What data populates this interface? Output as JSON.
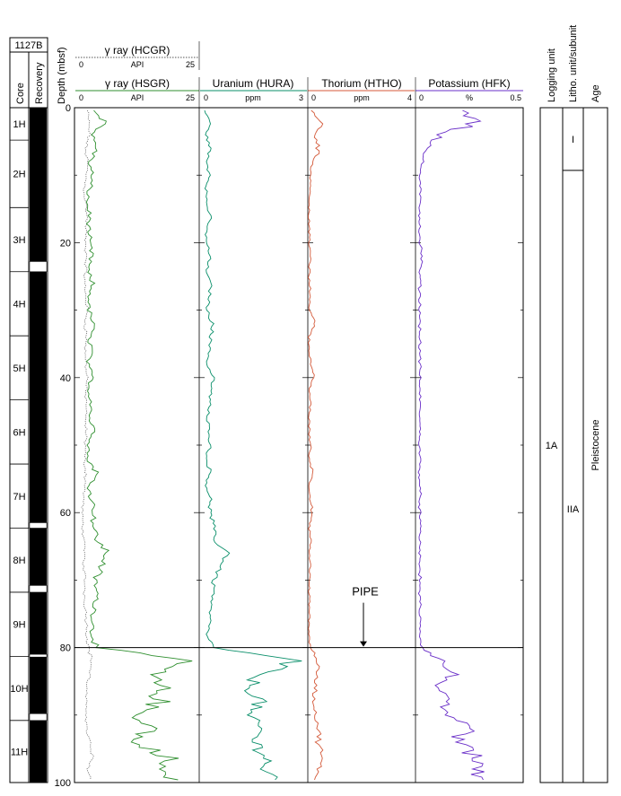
{
  "site": "1127B",
  "headers": {
    "core": "Core",
    "recovery": "Recovery",
    "depth": "Depth (mbsf)",
    "logging_unit": "Logging unit",
    "litho_unit": "Litho. unit/subunit",
    "age": "Age"
  },
  "tracks": {
    "hcgr": {
      "title": "γ ray (HCGR)",
      "unit": "API",
      "min": "0",
      "max": "25"
    },
    "hsgr": {
      "title": "γ ray (HSGR)",
      "unit": "API",
      "min": "0",
      "max": "25"
    },
    "hura": {
      "title": "Uranium (HURA)",
      "unit": "ppm",
      "min": "0",
      "max": "3"
    },
    "htho": {
      "title": "Thorium (HTHO)",
      "unit": "ppm",
      "min": "0",
      "max": "4"
    },
    "hfk": {
      "title": "Potassium (HFK)",
      "unit": "%",
      "min": "0",
      "max": "0.5"
    }
  },
  "annotation": {
    "pipe": "PIPE",
    "pipe_depth": 80
  },
  "cores": [
    {
      "label": "1H",
      "top": 0,
      "bottom": 4.8
    },
    {
      "label": "2H",
      "top": 4.8,
      "bottom": 14.8
    },
    {
      "label": "3H",
      "top": 14.8,
      "bottom": 24.3
    },
    {
      "label": "4H",
      "top": 24.3,
      "bottom": 33.8
    },
    {
      "label": "5H",
      "top": 33.8,
      "bottom": 43.3
    },
    {
      "label": "6H",
      "top": 43.3,
      "bottom": 52.8
    },
    {
      "label": "7H",
      "top": 52.8,
      "bottom": 62.3
    },
    {
      "label": "8H",
      "top": 62.3,
      "bottom": 71.8
    },
    {
      "label": "9H",
      "top": 71.8,
      "bottom": 81.3
    },
    {
      "label": "10H",
      "top": 81.3,
      "bottom": 90.8
    },
    {
      "label": "11H",
      "top": 90.8,
      "bottom": 100
    }
  ],
  "recovery_gaps": [
    [
      22.8,
      24.3
    ],
    [
      61.5,
      62.3
    ],
    [
      70.8,
      71.8
    ],
    [
      81.0,
      81.3
    ],
    [
      89.8,
      90.8
    ]
  ],
  "logging_units": [
    {
      "label": "1A",
      "top": 0,
      "bottom": 100
    }
  ],
  "litho_units": [
    {
      "label": "I",
      "top": 0,
      "bottom": 9.3
    },
    {
      "label": "IIA",
      "top": 9.3,
      "bottom": 100
    }
  ],
  "ages": [
    {
      "label": "Pleistocene",
      "top": 0,
      "bottom": 100
    }
  ],
  "chart_data": {
    "type": "line",
    "y_axis": {
      "label": "Depth (mbsf)",
      "range": [
        0,
        100
      ],
      "inverted": true,
      "ticks": [
        0,
        20,
        40,
        60,
        80,
        100
      ]
    },
    "series": [
      {
        "name": "γ ray (HCGR)",
        "unit": "API",
        "range": [
          0,
          25
        ],
        "color": "#555555",
        "dashed": true,
        "style": "dotted"
      },
      {
        "name": "γ ray (HSGR)",
        "unit": "API",
        "range": [
          0,
          25
        ],
        "color": "#2f8f2f"
      },
      {
        "name": "Uranium (HURA)",
        "unit": "ppm",
        "range": [
          0,
          3
        ],
        "color": "#0a8f6a"
      },
      {
        "name": "Thorium (HTHO)",
        "unit": "ppm",
        "range": [
          0,
          4
        ],
        "color": "#d45a3a"
      },
      {
        "name": "Potassium (HFK)",
        "unit": "%",
        "range": [
          0,
          0.5
        ],
        "color": "#6a2fc8"
      }
    ],
    "profiles_approx": {
      "depth": [
        0,
        2,
        4,
        6,
        8,
        10,
        12,
        14,
        16,
        18,
        20,
        22,
        24,
        26,
        28,
        30,
        32,
        34,
        36,
        38,
        40,
        42,
        44,
        46,
        48,
        50,
        52,
        54,
        56,
        58,
        60,
        62,
        64,
        66,
        68,
        70,
        72,
        74,
        76,
        78,
        80,
        82,
        84,
        86,
        88,
        90,
        92,
        94,
        96,
        98,
        100
      ],
      "hcgr": [
        2.5,
        2.8,
        3.0,
        2.2,
        2.6,
        2.4,
        2.0,
        2.2,
        2.5,
        2.3,
        2.1,
        2.4,
        2.2,
        2.0,
        2.3,
        2.5,
        2.2,
        2.4,
        2.1,
        2.3,
        2.6,
        2.2,
        2.4,
        2.1,
        2.3,
        2.2,
        2.0,
        2.3,
        2.1,
        1.8,
        1.5,
        1.7,
        1.8,
        2.0,
        1.8,
        2.1,
        2.0,
        2.2,
        2.4,
        2.5,
        2.8,
        3.5,
        3.0,
        2.4,
        2.2,
        2.5,
        2.4,
        3.0,
        3.5,
        2.8,
        3.4
      ],
      "hsgr": [
        3.0,
        6.5,
        3.5,
        4.5,
        3.0,
        3.5,
        3.0,
        2.5,
        3.0,
        2.8,
        3.0,
        3.4,
        2.6,
        3.5,
        3.0,
        2.8,
        3.8,
        3.0,
        3.5,
        2.6,
        3.5,
        2.8,
        3.6,
        3.0,
        4.0,
        3.0,
        2.5,
        4.5,
        3.0,
        3.5,
        4.0,
        3.8,
        4.5,
        6.5,
        5.5,
        4.0,
        4.5,
        4.0,
        3.8,
        3.5,
        4.5,
        22.0,
        15.0,
        17.0,
        17.0,
        12.5,
        16.0,
        11.0,
        19.0,
        17.0,
        19.0
      ],
      "hura": [
        0.1,
        0.3,
        0.2,
        0.3,
        0.2,
        0.3,
        0.2,
        0.2,
        0.3,
        0.2,
        0.2,
        0.3,
        0.2,
        0.3,
        0.3,
        0.2,
        0.4,
        0.3,
        0.3,
        0.2,
        0.4,
        0.3,
        0.3,
        0.2,
        0.3,
        0.3,
        0.2,
        0.3,
        0.2,
        0.3,
        0.3,
        0.4,
        0.4,
        0.8,
        0.6,
        0.4,
        0.4,
        0.3,
        0.3,
        0.2,
        0.4,
        2.6,
        1.6,
        1.4,
        1.7,
        1.3,
        1.7,
        1.5,
        1.9,
        1.8,
        2.0
      ],
      "htho": [
        0.05,
        0.5,
        0.3,
        0.4,
        0.2,
        0.1,
        0.1,
        0.05,
        0.05,
        0.05,
        0.05,
        0.1,
        0.05,
        0.05,
        0.1,
        0.05,
        0.3,
        0.05,
        0.05,
        0.1,
        0.2,
        0.05,
        0.1,
        0.05,
        0.05,
        0.1,
        0.05,
        0.2,
        0.05,
        0.1,
        0.15,
        0.05,
        0.1,
        0.05,
        0.1,
        0.05,
        0.05,
        0.05,
        0.05,
        0.05,
        0.1,
        0.4,
        0.3,
        0.3,
        0.2,
        0.3,
        0.4,
        0.4,
        0.5,
        0.4,
        0.3
      ],
      "hfk": [
        0.17,
        0.3,
        0.12,
        0.05,
        0.03,
        0.02,
        0.02,
        0.02,
        0.02,
        0.02,
        0.02,
        0.03,
        0.02,
        0.02,
        0.02,
        0.02,
        0.02,
        0.02,
        0.02,
        0.02,
        0.02,
        0.02,
        0.02,
        0.02,
        0.02,
        0.02,
        0.02,
        0.02,
        0.02,
        0.02,
        0.02,
        0.02,
        0.02,
        0.02,
        0.02,
        0.02,
        0.02,
        0.02,
        0.02,
        0.02,
        0.03,
        0.12,
        0.17,
        0.1,
        0.14,
        0.12,
        0.25,
        0.18,
        0.28,
        0.26,
        0.28
      ]
    }
  }
}
